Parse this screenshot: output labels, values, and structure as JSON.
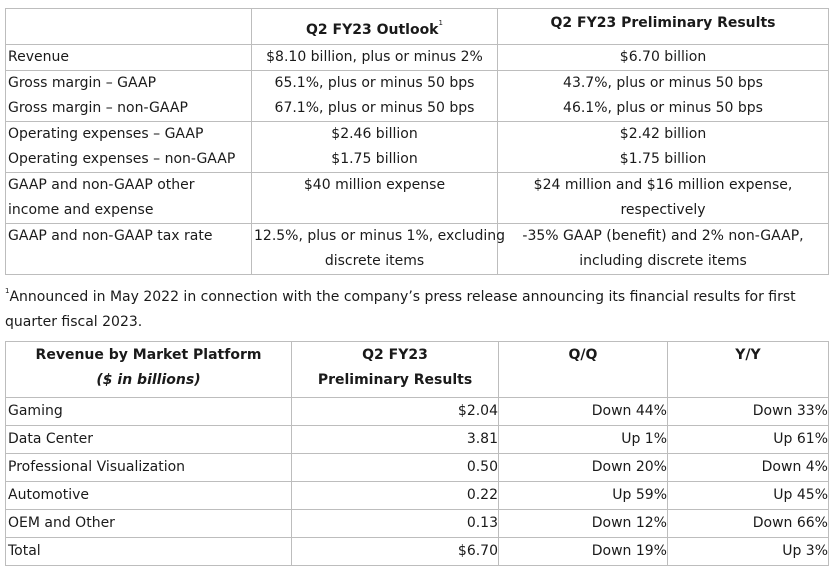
{
  "outlook_table": {
    "headers": {
      "blank": "",
      "outlook": "Q2 FY23 Outlook",
      "outlook_footnote_mark": "1",
      "results": "Q2 FY23 Preliminary Results"
    },
    "rows": [
      {
        "label": [
          "Revenue"
        ],
        "outlook": [
          "$8.10 billion, plus or minus 2%"
        ],
        "results": [
          "$6.70 billion"
        ]
      },
      {
        "label": [
          "Gross margin – GAAP",
          "Gross margin – non-GAAP"
        ],
        "outlook": [
          "65.1%, plus or minus 50 bps",
          "67.1%, plus or minus 50 bps"
        ],
        "results": [
          "43.7%, plus or minus 50 bps",
          "46.1%, plus or minus 50 bps"
        ]
      },
      {
        "label": [
          "Operating expenses – GAAP",
          "Operating expenses – non-GAAP"
        ],
        "outlook": [
          "$2.46 billion",
          "$1.75 billion"
        ],
        "results": [
          "$2.42 billion",
          "$1.75 billion"
        ]
      },
      {
        "label": [
          "GAAP and non-GAAP other",
          "income and expense"
        ],
        "outlook": [
          "$40 million expense"
        ],
        "results": [
          "$24 million and $16 million expense,",
          "respectively"
        ]
      },
      {
        "label": [
          "GAAP and non-GAAP tax rate"
        ],
        "outlook": [
          "12.5%, plus or minus 1%, excluding",
          "discrete items"
        ],
        "results": [
          "-35% GAAP (benefit) and 2% non-GAAP,",
          "including discrete items"
        ]
      }
    ]
  },
  "footnote": {
    "mark": "1",
    "line1": "Announced in May 2022 in connection with the company’s press release announcing its financial results for first",
    "line2": "quarter fiscal 2023."
  },
  "platform_table": {
    "headers": {
      "platform_line1": "Revenue by Market Platform",
      "platform_line2": "($ in billions)",
      "results_line1": "Q2 FY23",
      "results_line2": "Preliminary Results",
      "qq": "Q/Q",
      "yy": "Y/Y"
    },
    "rows": [
      {
        "platform": "Gaming",
        "value": "$2.04",
        "qq": "Down 44%",
        "yy": "Down 33%"
      },
      {
        "platform": "Data Center",
        "value": "3.81",
        "qq": "Up 1%",
        "yy": "Up 61%"
      },
      {
        "platform": "Professional Visualization",
        "value": "0.50",
        "qq": "Down 20%",
        "yy": "Down 4%"
      },
      {
        "platform": "Automotive",
        "value": "0.22",
        "qq": "Up 59%",
        "yy": "Up 45%"
      },
      {
        "platform": "OEM and Other",
        "value": "0.13",
        "qq": "Down 12%",
        "yy": "Down 66%"
      },
      {
        "platform": "Total",
        "value": "$6.70",
        "qq": "Down 19%",
        "yy": "Up 3%"
      }
    ]
  }
}
